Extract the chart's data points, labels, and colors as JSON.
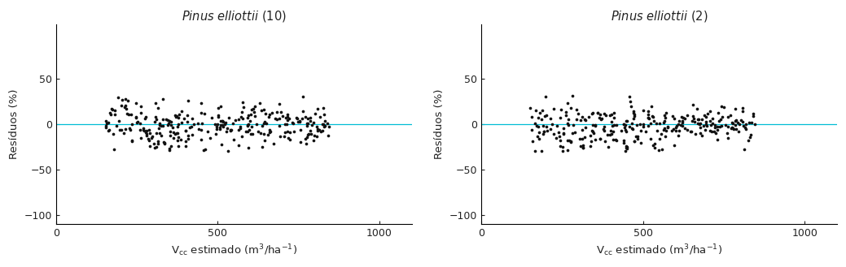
{
  "subplot1": {
    "title_italic": "Pinus elliottii",
    "title_number": "(10)",
    "xlabel_base": "estimado (m",
    "ylabel": "Resíduos (%)",
    "xlim": [
      0,
      1100
    ],
    "ylim": [
      -110,
      110
    ],
    "yticks": [
      -100,
      -50,
      0,
      50
    ],
    "xticks": [
      0,
      500,
      1000
    ],
    "zero_line_color": "#00bcd4",
    "dot_color": "#111111",
    "dot_size": 7,
    "seed": 42
  },
  "subplot2": {
    "title_italic": "Pinus elliottii",
    "title_number": "(2)",
    "xlabel_base": "estimado (m",
    "ylabel": "Resíduos (%)",
    "xlim": [
      0,
      1100
    ],
    "ylim": [
      -110,
      110
    ],
    "yticks": [
      -100,
      -50,
      0,
      50
    ],
    "xticks": [
      0,
      500,
      1000
    ],
    "zero_line_color": "#00bcd4",
    "dot_color": "#111111",
    "dot_size": 7,
    "seed": 7
  },
  "figure_bg": "#ffffff",
  "axes_bg": "#ffffff",
  "spine_color": "#000000",
  "tick_color": "#222222",
  "label_color": "#222222",
  "title_fontsize": 10.5,
  "label_fontsize": 9.5,
  "tick_fontsize": 9
}
